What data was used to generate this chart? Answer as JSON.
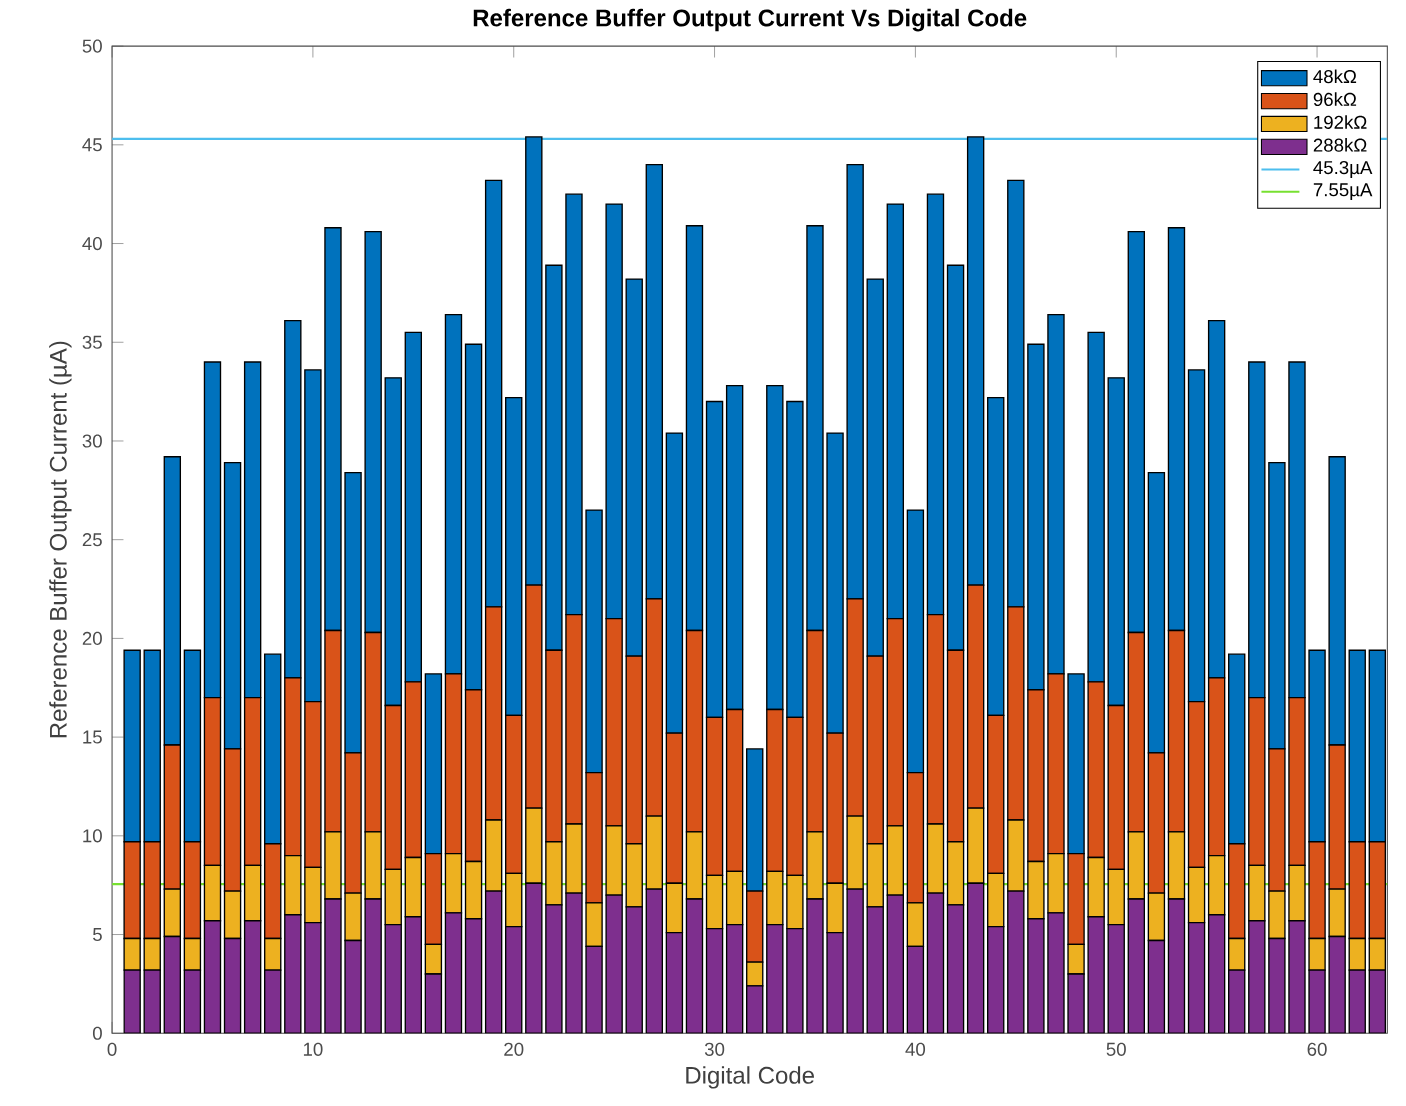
{
  "chart_data": {
    "type": "bar",
    "title": "Reference Buffer Output Current Vs Digital Code",
    "xlabel": "Digital Code",
    "ylabel": "Reference Buffer Output Current (µA)",
    "stacked": true,
    "x": [
      1,
      2,
      3,
      4,
      5,
      6,
      7,
      8,
      9,
      10,
      11,
      12,
      13,
      14,
      15,
      16,
      17,
      18,
      19,
      20,
      21,
      22,
      23,
      24,
      25,
      26,
      27,
      28,
      29,
      30,
      31,
      32,
      33,
      34,
      35,
      36,
      37,
      38,
      39,
      40,
      41,
      42,
      43,
      44,
      45,
      46,
      47,
      48,
      49,
      50,
      51,
      52,
      53,
      54,
      55,
      56,
      57,
      58,
      59,
      60,
      61,
      62,
      63
    ],
    "series": [
      {
        "name": "288kΩ",
        "color": "#7e2f8e",
        "values": [
          3.2,
          3.2,
          4.9,
          3.2,
          5.7,
          4.8,
          5.7,
          3.2,
          6.0,
          5.6,
          6.8,
          4.7,
          6.8,
          5.5,
          5.9,
          3.0,
          6.1,
          5.8,
          7.2,
          5.4,
          7.6,
          6.5,
          7.1,
          4.4,
          7.0,
          6.4,
          7.3,
          5.1,
          6.8,
          5.3,
          5.5,
          2.4,
          5.5,
          5.3,
          6.8,
          5.1,
          7.3,
          6.4,
          7.0,
          4.4,
          7.1,
          6.5,
          7.6,
          5.4,
          7.2,
          5.8,
          6.1,
          3.0,
          5.9,
          5.5,
          6.8,
          4.7,
          6.8,
          5.6,
          6.0,
          3.2,
          5.7,
          4.8,
          5.7,
          3.2,
          4.9,
          3.2,
          3.2
        ]
      },
      {
        "name": "192kΩ",
        "color": "#edb120",
        "values": [
          1.6,
          1.6,
          2.4,
          1.6,
          2.8,
          2.4,
          2.8,
          1.6,
          3.0,
          2.8,
          3.4,
          2.4,
          3.4,
          2.8,
          3.0,
          1.5,
          3.0,
          2.9,
          3.6,
          2.7,
          3.8,
          3.2,
          3.5,
          2.2,
          3.5,
          3.2,
          3.7,
          2.5,
          3.4,
          2.7,
          2.7,
          1.2,
          2.7,
          2.7,
          3.4,
          2.5,
          3.7,
          3.2,
          3.5,
          2.2,
          3.5,
          3.2,
          3.8,
          2.7,
          3.6,
          2.9,
          3.0,
          1.5,
          3.0,
          2.8,
          3.4,
          2.4,
          3.4,
          2.8,
          3.0,
          1.6,
          2.8,
          2.4,
          2.8,
          1.6,
          2.4,
          1.6,
          1.6
        ]
      },
      {
        "name": "96kΩ",
        "color": "#d95319",
        "values": [
          4.9,
          4.9,
          7.3,
          4.9,
          8.5,
          7.2,
          8.5,
          4.8,
          9.0,
          8.4,
          10.2,
          7.1,
          10.1,
          8.3,
          8.9,
          4.6,
          9.1,
          8.7,
          10.8,
          8.0,
          11.3,
          9.7,
          10.6,
          6.6,
          10.5,
          9.5,
          11.0,
          7.6,
          10.2,
          8.0,
          8.2,
          3.6,
          8.2,
          8.0,
          10.2,
          7.6,
          11.0,
          9.5,
          10.5,
          6.6,
          10.6,
          9.7,
          11.3,
          8.0,
          10.8,
          8.7,
          9.1,
          4.6,
          8.9,
          8.3,
          10.1,
          7.1,
          10.2,
          8.4,
          9.0,
          4.8,
          8.5,
          7.2,
          8.5,
          4.9,
          7.3,
          4.9,
          4.9
        ]
      },
      {
        "name": "48kΩ",
        "color": "#0072bd",
        "values": [
          9.7,
          9.7,
          14.6,
          9.7,
          17.0,
          14.5,
          17.0,
          9.6,
          18.1,
          16.8,
          20.4,
          14.2,
          20.3,
          16.6,
          17.7,
          9.1,
          18.2,
          17.5,
          21.6,
          16.1,
          22.7,
          19.5,
          21.3,
          13.3,
          21.0,
          19.1,
          22.0,
          15.2,
          20.5,
          16.0,
          16.4,
          7.2,
          16.4,
          16.0,
          20.5,
          15.2,
          22.0,
          19.1,
          21.0,
          13.3,
          21.3,
          19.5,
          22.7,
          16.1,
          21.6,
          17.5,
          18.2,
          9.1,
          17.7,
          16.6,
          20.3,
          14.2,
          20.4,
          16.8,
          18.1,
          9.6,
          17.0,
          14.5,
          17.0,
          9.7,
          14.6,
          9.7,
          9.7
        ]
      }
    ],
    "ref_lines": [
      {
        "axis": "y",
        "value": 45.3,
        "label": "45.3µA",
        "color": "#4dbeee"
      },
      {
        "axis": "y",
        "value": 7.55,
        "label": "7.55µA",
        "color": "#77e030"
      }
    ],
    "xlim": [
      0,
      63.5
    ],
    "ylim": [
      0,
      50
    ],
    "xticks": [
      0,
      10,
      20,
      30,
      40,
      50,
      60
    ],
    "yticks": [
      0,
      5,
      10,
      15,
      20,
      25,
      30,
      35,
      40,
      45,
      50
    ],
    "grid": false,
    "legend": "top right"
  }
}
